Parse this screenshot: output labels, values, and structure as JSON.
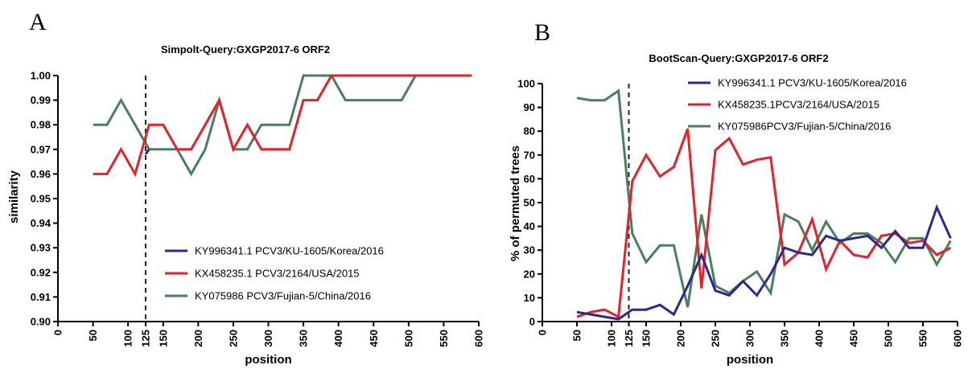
{
  "figure": {
    "panel_a_letter": "A",
    "panel_b_letter": "B"
  },
  "chart_data": [
    {
      "type": "line",
      "title": "Simpolt-Query:GXGP2017-6 ORF2",
      "xlabel": "position",
      "ylabel": "similarity",
      "xlim": [
        0,
        600
      ],
      "ylim": [
        0.9,
        1.0
      ],
      "xticks": [
        0,
        50,
        100,
        125,
        150,
        200,
        250,
        300,
        350,
        400,
        450,
        500,
        550,
        600
      ],
      "xtick_labels": [
        "0",
        "50",
        "100",
        "125",
        "150",
        "200",
        "250",
        "300",
        "350",
        "400",
        "450",
        "500",
        "550",
        "600"
      ],
      "yticks": [
        0.9,
        0.91,
        0.92,
        0.93,
        0.94,
        0.95,
        0.96,
        0.97,
        0.98,
        0.99,
        1.0
      ],
      "ytick_labels": [
        "0.90",
        "0.91",
        "0.92",
        "0.93",
        "0.94",
        "0.95",
        "0.96",
        "0.97",
        "0.98",
        "0.99",
        "1.00"
      ],
      "vline": 125,
      "grid": false,
      "legend_position": "lower-right",
      "series": [
        {
          "name": "KY996341.1 PCV3/KU-1605/Korea/2016",
          "color": "#2a2a8c",
          "x": [
            125,
            130
          ],
          "y": [
            0.968,
            0.97
          ]
        },
        {
          "name": "KX458235.1 PCV3/2164/USA/2015",
          "color": "#e8202a",
          "x": [
            50,
            70,
            90,
            110,
            130,
            150,
            170,
            190,
            210,
            230,
            250,
            270,
            290,
            310,
            330,
            350,
            370,
            390,
            410,
            430,
            450,
            470,
            490,
            510,
            530,
            550,
            570,
            590
          ],
          "y": [
            0.96,
            0.96,
            0.97,
            0.96,
            0.98,
            0.98,
            0.97,
            0.97,
            0.98,
            0.99,
            0.97,
            0.98,
            0.97,
            0.97,
            0.97,
            0.99,
            0.99,
            1.0,
            1.0,
            1.0,
            1.0,
            1.0,
            1.0,
            1.0,
            1.0,
            1.0,
            1.0,
            1.0
          ]
        },
        {
          "name": "KY075986 PCV3/Fujian-5/China/2016",
          "color": "#4a7f5e",
          "x": [
            50,
            70,
            90,
            110,
            130,
            150,
            170,
            190,
            210,
            230,
            250,
            270,
            290,
            310,
            330,
            350,
            370,
            390,
            410,
            430,
            450,
            470,
            490,
            510,
            530,
            550,
            570,
            590
          ],
          "y": [
            0.98,
            0.98,
            0.99,
            0.98,
            0.97,
            0.97,
            0.97,
            0.96,
            0.97,
            0.99,
            0.97,
            0.97,
            0.98,
            0.98,
            0.98,
            1.0,
            1.0,
            1.0,
            0.99,
            0.99,
            0.99,
            0.99,
            0.99,
            1.0,
            1.0,
            1.0,
            1.0,
            1.0
          ]
        }
      ]
    },
    {
      "type": "line",
      "title": "BootScan-Query:GXGP2017-6 ORF2",
      "xlabel": "position",
      "ylabel": "% of permuted trees",
      "xlim": [
        0,
        600
      ],
      "ylim": [
        0,
        100
      ],
      "xticks": [
        0,
        50,
        100,
        125,
        150,
        200,
        250,
        300,
        350,
        400,
        450,
        500,
        550,
        600
      ],
      "xtick_labels": [
        "0",
        "50",
        "100",
        "125",
        "150",
        "200",
        "250",
        "300",
        "350",
        "400",
        "450",
        "500",
        "550",
        "600"
      ],
      "yticks": [
        0,
        10,
        20,
        30,
        40,
        50,
        60,
        70,
        80,
        90,
        100
      ],
      "ytick_labels": [
        "0",
        "10",
        "20",
        "30",
        "40",
        "50",
        "60",
        "70",
        "80",
        "90",
        "100"
      ],
      "vline": 125,
      "grid": false,
      "legend_position": "top-right",
      "series": [
        {
          "name": "KY996341.1 PCV3/KU-1605/Korea/2016",
          "color": "#2a2a8c",
          "x": [
            50,
            70,
            90,
            110,
            130,
            150,
            170,
            190,
            210,
            230,
            250,
            270,
            290,
            310,
            330,
            350,
            370,
            390,
            410,
            430,
            450,
            470,
            490,
            510,
            530,
            550,
            570,
            590
          ],
          "y": [
            4,
            3,
            2,
            1,
            5,
            5,
            7,
            3,
            15,
            28,
            13,
            11,
            17,
            11,
            20,
            31,
            29,
            28,
            36,
            34,
            35,
            36,
            31,
            38,
            31,
            31,
            48,
            35
          ]
        },
        {
          "name": "KX458235.1PCV3/2164/USA/2015",
          "color": "#e8202a",
          "x": [
            50,
            70,
            90,
            110,
            130,
            150,
            170,
            190,
            210,
            230,
            250,
            270,
            290,
            310,
            330,
            350,
            370,
            390,
            410,
            430,
            450,
            470,
            490,
            510,
            530,
            550,
            570,
            590
          ],
          "y": [
            2,
            4,
            5,
            2,
            59,
            70,
            61,
            65,
            81,
            14,
            72,
            77,
            66,
            68,
            69,
            24,
            29,
            43,
            22,
            34,
            28,
            27,
            36,
            37,
            33,
            34,
            28,
            31
          ]
        },
        {
          "name": "KY075986PCV3/Fujian-5/China/2016",
          "color": "#4a7f5e",
          "x": [
            50,
            70,
            90,
            110,
            130,
            150,
            170,
            190,
            210,
            230,
            250,
            270,
            290,
            310,
            330,
            350,
            370,
            390,
            410,
            430,
            450,
            470,
            490,
            510,
            530,
            550,
            570,
            590
          ],
          "y": [
            94,
            93,
            93,
            97,
            37,
            25,
            32,
            32,
            6,
            45,
            15,
            12,
            17,
            21,
            12,
            45,
            42,
            30,
            42,
            33,
            37,
            37,
            33,
            25,
            35,
            35,
            24,
            34
          ]
        }
      ]
    }
  ]
}
